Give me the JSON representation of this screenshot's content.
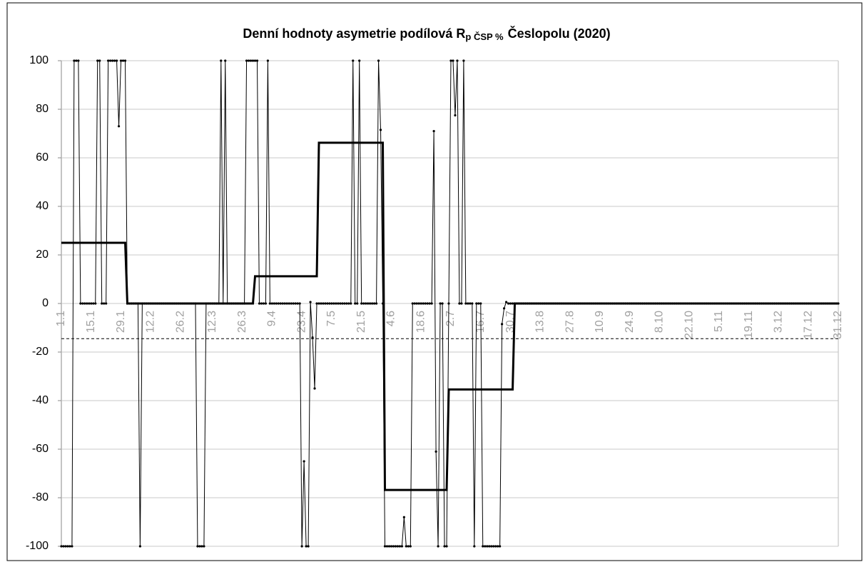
{
  "chart_data": {
    "type": "line",
    "title": "Denní hodnoty asymetrie podílová R",
    "title_subscript": "p ČSP %",
    "title_end": "Česlopolu (2020)",
    "categories": [
      "1.1",
      null,
      null,
      null,
      null,
      null,
      null,
      null,
      null,
      null,
      null,
      null,
      null,
      null,
      "15.1",
      null,
      null,
      null,
      null,
      null,
      null,
      null,
      null,
      null,
      null,
      null,
      null,
      null,
      "29.1",
      null,
      null,
      null,
      null,
      null,
      null,
      null,
      null,
      null,
      null,
      null,
      null,
      null,
      "12.2",
      null,
      null,
      null,
      null,
      null,
      null,
      null,
      null,
      null,
      null,
      null,
      null,
      null,
      "26.2",
      null,
      null,
      null,
      null,
      null,
      null,
      null,
      null,
      null,
      null,
      null,
      null,
      null,
      null,
      "12.3",
      null,
      null,
      null,
      null,
      null,
      null,
      null,
      null,
      null,
      null,
      null,
      null,
      null,
      "26.3",
      null,
      null,
      null,
      null,
      null,
      null,
      null,
      null,
      null,
      null,
      null,
      null,
      null,
      "9.4",
      null,
      null,
      null,
      null,
      null,
      null,
      null,
      null,
      null,
      null,
      null,
      null,
      null,
      "23.4",
      null,
      null,
      null,
      null,
      null,
      null,
      null,
      null,
      null,
      null,
      null,
      null,
      null,
      "7.5",
      null,
      null,
      null,
      null,
      null,
      null,
      null,
      null,
      null,
      null,
      null,
      null,
      null,
      "21.5",
      null,
      null,
      null,
      null,
      null,
      null,
      null,
      null,
      null,
      null,
      null,
      null,
      null,
      "4.6",
      null,
      null,
      null,
      null,
      null,
      null,
      null,
      null,
      null,
      null,
      null,
      null,
      null,
      "18.6",
      null,
      null,
      null,
      null,
      null,
      null,
      null,
      null,
      null,
      null,
      null,
      null,
      null,
      "2.7",
      null,
      null,
      null,
      null,
      null,
      null,
      null,
      null,
      null,
      null,
      null,
      null,
      null,
      "16.7",
      null,
      null,
      null,
      null,
      null,
      null,
      null,
      null,
      null,
      null,
      null,
      null,
      null,
      "30.7",
      null,
      null,
      null,
      null,
      null,
      null,
      null,
      null,
      null,
      null,
      null,
      null,
      null,
      "13.8",
      null,
      null,
      null,
      null,
      null,
      null,
      null,
      null,
      null,
      null,
      null,
      null,
      null,
      "27.8",
      null,
      null,
      null,
      null,
      null,
      null,
      null,
      null,
      null,
      null,
      null,
      null,
      null,
      "10.9",
      null,
      null,
      null,
      null,
      null,
      null,
      null,
      null,
      null,
      null,
      null,
      null,
      null,
      "24.9",
      null,
      null,
      null,
      null,
      null,
      null,
      null,
      null,
      null,
      null,
      null,
      null,
      null,
      "8.10",
      null,
      null,
      null,
      null,
      null,
      null,
      null,
      null,
      null,
      null,
      null,
      null,
      null,
      "22.10",
      null,
      null,
      null,
      null,
      null,
      null,
      null,
      null,
      null,
      null,
      null,
      null,
      null,
      "5.11",
      null,
      null,
      null,
      null,
      null,
      null,
      null,
      null,
      null,
      null,
      null,
      null,
      null,
      "19.11",
      null,
      null,
      null,
      null,
      null,
      null,
      null,
      null,
      null,
      null,
      null,
      null,
      null,
      "3.12",
      null,
      null,
      null,
      null,
      null,
      null,
      null,
      null,
      null,
      null,
      null,
      null,
      null,
      "17.12",
      null,
      null,
      null,
      null,
      null,
      null,
      null,
      null,
      null,
      null,
      null,
      null,
      null,
      "31.12"
    ],
    "series": [
      {
        "color": "#000000",
        "width": 1,
        "markers": true,
        "values": [
          -100,
          -100,
          -100,
          -100,
          -100,
          -100,
          100,
          100,
          100,
          0,
          0,
          0,
          0,
          0,
          0,
          0,
          0,
          100,
          100,
          0,
          0,
          0,
          100,
          100,
          100,
          100,
          100,
          73,
          100,
          100,
          100,
          0,
          0,
          0,
          0,
          0,
          0,
          -100,
          0,
          0,
          0,
          0,
          0,
          0,
          0,
          0,
          0,
          0,
          0,
          0,
          0,
          0,
          0,
          0,
          0,
          0,
          0,
          0,
          0,
          0,
          0,
          0,
          0,
          0,
          -100,
          -100,
          -100,
          -100,
          0,
          0,
          0,
          0,
          0,
          0,
          0,
          100,
          0,
          100,
          0,
          0,
          0,
          0,
          0,
          0,
          0,
          0,
          0,
          100,
          100,
          100,
          100,
          100,
          100,
          0,
          0,
          0,
          0,
          100,
          0,
          0,
          0,
          0,
          0,
          0,
          0,
          0,
          0,
          0,
          0,
          0,
          0,
          0,
          0,
          -100,
          -65,
          -100,
          -100,
          0.6,
          -14,
          -35,
          0,
          0,
          0,
          0,
          0,
          0,
          0,
          0,
          0,
          0,
          0,
          0,
          0,
          0,
          0,
          0,
          0,
          100,
          0,
          0,
          100,
          0,
          0,
          0,
          0,
          0,
          0,
          0,
          0,
          100,
          71.5,
          0,
          -100,
          -100,
          -100,
          -100,
          -100,
          -100,
          -100,
          -100,
          -100,
          -88,
          -100,
          -100,
          -100,
          0,
          0,
          0,
          0,
          0,
          0,
          0,
          0,
          0,
          0,
          71,
          -61,
          -100,
          0,
          0,
          -100,
          -100,
          0,
          100,
          100,
          77.5,
          100,
          0,
          0,
          100,
          0,
          0,
          0,
          0,
          -100,
          0,
          0,
          0,
          -100,
          -100,
          -100,
          -100,
          -100,
          -100,
          -100,
          -100,
          -100,
          -8.5,
          -2,
          0.6,
          0,
          0,
          0,
          0,
          0,
          0,
          0,
          0,
          0,
          0,
          0,
          0,
          0,
          0,
          0,
          0,
          0,
          0,
          0,
          0,
          0,
          0,
          0,
          0,
          0,
          0,
          0,
          0,
          0,
          0,
          0,
          0,
          0,
          0,
          0,
          0,
          0,
          0,
          0,
          0,
          0,
          0,
          0,
          0,
          0,
          0,
          0,
          0,
          0,
          0,
          0,
          0,
          0,
          0,
          0,
          0,
          0,
          0,
          0,
          0,
          0,
          0,
          0,
          0,
          0,
          0,
          0,
          0,
          0,
          0,
          0,
          0,
          0,
          0,
          0,
          0,
          0,
          0,
          0,
          0,
          0,
          0,
          0,
          0,
          0,
          0,
          0,
          0,
          0,
          0,
          0,
          0,
          0,
          0,
          0,
          0,
          0,
          0,
          0,
          0,
          0,
          0,
          0,
          0,
          0,
          0,
          0,
          0,
          0,
          0,
          0,
          0,
          0,
          0,
          0,
          0,
          0,
          0,
          0,
          0,
          0,
          0,
          0,
          0,
          0,
          0,
          0,
          0,
          0,
          0,
          0,
          0,
          0,
          0,
          0,
          0,
          0,
          0,
          0,
          0,
          0,
          0,
          0,
          0,
          0,
          0,
          0,
          0,
          0,
          0,
          0,
          0,
          0,
          0,
          0,
          0
        ]
      },
      {
        "color": "#000000",
        "width": 3,
        "markers": false,
        "values": [
          25,
          25,
          25,
          25,
          25,
          25,
          25,
          25,
          25,
          25,
          25,
          25,
          25,
          25,
          25,
          25,
          25,
          25,
          25,
          25,
          25,
          25,
          25,
          25,
          25,
          25,
          25,
          25,
          25,
          25,
          25,
          0,
          0,
          0,
          0,
          0,
          0,
          0,
          0,
          0,
          0,
          0,
          0,
          0,
          0,
          0,
          0,
          0,
          0,
          0,
          0,
          0,
          0,
          0,
          0,
          0,
          0,
          0,
          0,
          0,
          0,
          0,
          0,
          0,
          0,
          0,
          0,
          0,
          0,
          0,
          0,
          0,
          0,
          0,
          0,
          0,
          0,
          0,
          0,
          0,
          0,
          0,
          0,
          0,
          0,
          0,
          0,
          0,
          0,
          0,
          0,
          11.2,
          11.2,
          11.2,
          11.2,
          11.2,
          11.2,
          11.2,
          11.2,
          11.2,
          11.2,
          11.2,
          11.2,
          11.2,
          11.2,
          11.2,
          11.2,
          11.2,
          11.2,
          11.2,
          11.2,
          11.2,
          11.2,
          11.2,
          11.2,
          11.2,
          11.2,
          11.2,
          11.2,
          11.2,
          11.2,
          66.2,
          66.2,
          66.2,
          66.2,
          66.2,
          66.2,
          66.2,
          66.2,
          66.2,
          66.2,
          66.2,
          66.2,
          66.2,
          66.2,
          66.2,
          66.2,
          66.2,
          66.2,
          66.2,
          66.2,
          66.2,
          66.2,
          66.2,
          66.2,
          66.2,
          66.2,
          66.2,
          66.2,
          66.2,
          66.2,
          66.2,
          -76.8,
          -76.8,
          -76.8,
          -76.8,
          -76.8,
          -76.8,
          -76.8,
          -76.8,
          -76.8,
          -76.8,
          -76.8,
          -76.8,
          -76.8,
          -76.8,
          -76.8,
          -76.8,
          -76.8,
          -76.8,
          -76.8,
          -76.8,
          -76.8,
          -76.8,
          -76.8,
          -76.8,
          -76.8,
          -76.8,
          -76.8,
          -76.8,
          -76.8,
          -76.8,
          -35.4,
          -35.4,
          -35.4,
          -35.4,
          -35.4,
          -35.4,
          -35.4,
          -35.4,
          -35.4,
          -35.4,
          -35.4,
          -35.4,
          -35.4,
          -35.4,
          -35.4,
          -35.4,
          -35.4,
          -35.4,
          -35.4,
          -35.4,
          -35.4,
          -35.4,
          -35.4,
          -35.4,
          -35.4,
          -35.4,
          -35.4,
          -35.4,
          -35.4,
          -35.4,
          -35.4,
          0,
          0,
          0,
          0,
          0,
          0,
          0,
          0,
          0,
          0,
          0,
          0,
          0,
          0,
          0,
          0,
          0,
          0,
          0,
          0,
          0,
          0,
          0,
          0,
          0,
          0,
          0,
          0,
          0,
          0,
          0,
          0,
          0,
          0,
          0,
          0,
          0,
          0,
          0,
          0,
          0,
          0,
          0,
          0,
          0,
          0,
          0,
          0,
          0,
          0,
          0,
          0,
          0,
          0,
          0,
          0,
          0,
          0,
          0,
          0,
          0,
          0,
          0,
          0,
          0,
          0,
          0,
          0,
          0,
          0,
          0,
          0,
          0,
          0,
          0,
          0,
          0,
          0,
          0,
          0,
          0,
          0,
          0,
          0,
          0,
          0,
          0,
          0,
          0,
          0,
          0,
          0,
          0,
          0,
          0,
          0,
          0,
          0,
          0,
          0,
          0,
          0,
          0,
          0,
          0,
          0,
          0,
          0,
          0,
          0,
          0,
          0,
          0,
          0,
          0,
          0,
          0,
          0,
          0,
          0,
          0,
          0,
          0,
          0,
          0,
          0,
          0,
          0,
          0,
          0,
          0,
          0,
          0,
          0,
          0,
          0,
          0,
          0,
          0,
          0,
          0,
          0,
          0,
          0,
          0,
          0,
          0,
          0,
          0,
          0,
          0,
          0,
          0
        ]
      }
    ],
    "reference_line": {
      "value": -14.5,
      "color": "#000000",
      "dashed": true
    },
    "ylim": [
      -100,
      100
    ],
    "yticks": [
      -100,
      -80,
      -60,
      -40,
      -20,
      0,
      20,
      40,
      60,
      80,
      100
    ],
    "grid": true
  }
}
